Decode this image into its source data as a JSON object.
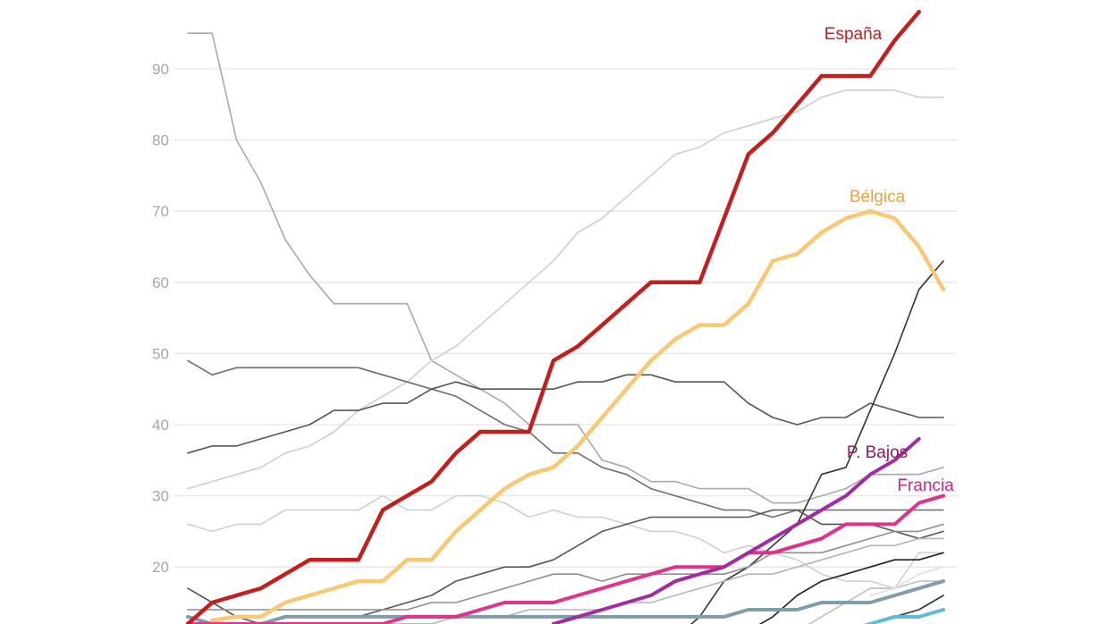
{
  "chart_data": {
    "type": "line",
    "title": "",
    "xlabel": "",
    "ylabel": "",
    "ylim": [
      0,
      100
    ],
    "y_ticks": [
      20,
      30,
      40,
      50,
      60,
      70,
      80,
      90
    ],
    "grid": true,
    "x": [
      1,
      2,
      3,
      4,
      5,
      6,
      7,
      8,
      9,
      10,
      11,
      12,
      13,
      14,
      15,
      16,
      17,
      18,
      19,
      20,
      21,
      22,
      23,
      24,
      25,
      26,
      27,
      28,
      29,
      30,
      31,
      32
    ],
    "series": [
      {
        "name": "gris-1",
        "color": "#a9a9a9",
        "width": "thin",
        "values": [
          95,
          95,
          80,
          74,
          66,
          61,
          57,
          57,
          57,
          57,
          49,
          47,
          45,
          43,
          40,
          40,
          40,
          35,
          34,
          32,
          32,
          31,
          31,
          31,
          29,
          29,
          30,
          31,
          33,
          33,
          33,
          34
        ]
      },
      {
        "name": "gris-2",
        "color": "#cfcfcf",
        "width": "thin",
        "values": [
          31,
          32,
          33,
          34,
          36,
          37,
          39,
          42,
          44,
          46,
          49,
          51,
          54,
          57,
          60,
          63,
          67,
          69,
          72,
          75,
          78,
          79,
          81,
          82,
          83,
          84,
          86,
          87,
          87,
          87,
          86,
          86
        ]
      },
      {
        "name": "gris-3",
        "color": "#6e6e6e",
        "width": "thin",
        "values": [
          49,
          47,
          48,
          48,
          48,
          48,
          48,
          48,
          47,
          46,
          45,
          44,
          42,
          40,
          39,
          36,
          36,
          34,
          33,
          31,
          30,
          29,
          28,
          28,
          27,
          28,
          28,
          28,
          28,
          28,
          28,
          28
        ]
      },
      {
        "name": "gris-4",
        "color": "#555555",
        "width": "thin",
        "values": [
          36,
          37,
          37,
          38,
          39,
          40,
          42,
          42,
          43,
          43,
          45,
          46,
          45,
          45,
          45,
          45,
          46,
          46,
          47,
          47,
          46,
          46,
          46,
          43,
          41,
          40,
          41,
          41,
          43,
          42,
          41,
          41
        ]
      },
      {
        "name": "gris-5",
        "color": "#d0d0d0",
        "width": "thin",
        "values": [
          26,
          25,
          26,
          26,
          28,
          28,
          28,
          28,
          30,
          28,
          28,
          30,
          30,
          29,
          27,
          28,
          27,
          27,
          26,
          25,
          25,
          24,
          22,
          23,
          22,
          21,
          19,
          18,
          18,
          17,
          22,
          22
        ]
      },
      {
        "name": "gris-6",
        "color": "#333333",
        "width": "thin",
        "values": [
          null,
          null,
          null,
          null,
          null,
          null,
          null,
          null,
          null,
          null,
          null,
          null,
          null,
          null,
          null,
          null,
          null,
          null,
          null,
          null,
          10,
          13,
          18,
          20,
          23,
          26,
          33,
          34,
          42,
          50,
          59,
          63
        ]
      },
      {
        "name": "gris-7",
        "color": "#555555",
        "width": "thin",
        "values": [
          17,
          15,
          13,
          12,
          13,
          13,
          13,
          13,
          14,
          15,
          16,
          18,
          19,
          20,
          20,
          21,
          23,
          25,
          26,
          27,
          27,
          27,
          27,
          27,
          28,
          28,
          26,
          26,
          26,
          25,
          24,
          25
        ]
      },
      {
        "name": "gris-8",
        "color": "#8e8e8e",
        "width": "thin",
        "values": [
          14,
          14,
          14,
          14,
          14,
          14,
          14,
          14,
          14,
          14,
          15,
          15,
          16,
          17,
          18,
          19,
          19,
          18,
          19,
          19,
          19,
          19,
          19,
          20,
          22,
          22,
          22,
          23,
          24,
          25,
          25,
          26
        ]
      },
      {
        "name": "gris-9",
        "color": "#b5b5b5",
        "width": "thin",
        "values": [
          12,
          12,
          12,
          12,
          12,
          12,
          12,
          12,
          12,
          12,
          12,
          13,
          13,
          13,
          14,
          14,
          14,
          14,
          15,
          15,
          16,
          17,
          18,
          19,
          19,
          20,
          21,
          22,
          23,
          23,
          24,
          24
        ]
      },
      {
        "name": "gris-10",
        "color": "#222222",
        "width": "thin",
        "values": [
          null,
          null,
          null,
          null,
          null,
          null,
          null,
          null,
          null,
          null,
          null,
          null,
          null,
          null,
          null,
          null,
          null,
          null,
          null,
          null,
          null,
          null,
          10,
          11,
          13,
          16,
          18,
          19,
          20,
          21,
          21,
          22
        ]
      },
      {
        "name": "gris-11",
        "color": "#c0c0c0",
        "width": "thin",
        "values": [
          null,
          null,
          null,
          null,
          null,
          null,
          null,
          null,
          null,
          null,
          null,
          null,
          null,
          null,
          null,
          null,
          null,
          null,
          null,
          null,
          null,
          null,
          null,
          null,
          null,
          11,
          13,
          15,
          17,
          17,
          18,
          18
        ]
      },
      {
        "name": "gris-12",
        "color": "#e0e0e0",
        "width": "thin",
        "values": [
          null,
          null,
          null,
          null,
          null,
          null,
          null,
          null,
          null,
          null,
          null,
          null,
          null,
          null,
          null,
          null,
          null,
          null,
          null,
          null,
          null,
          null,
          null,
          null,
          null,
          null,
          null,
          null,
          16,
          17,
          19,
          20
        ]
      },
      {
        "name": "gris-13",
        "color": "#333333",
        "width": "thin",
        "values": [
          null,
          null,
          null,
          null,
          null,
          null,
          null,
          null,
          null,
          null,
          null,
          null,
          null,
          null,
          null,
          null,
          null,
          null,
          null,
          null,
          null,
          null,
          null,
          null,
          null,
          null,
          null,
          null,
          12,
          13,
          14,
          16
        ]
      },
      {
        "name": "azul-gris",
        "color": "#7f9ea9",
        "width": "medium",
        "values": [
          13,
          12,
          12,
          12,
          13,
          13,
          13,
          13,
          13,
          13,
          13,
          13,
          13,
          13,
          13,
          13,
          13,
          13,
          13,
          13,
          13,
          13,
          13,
          14,
          14,
          14,
          15,
          15,
          15,
          16,
          17,
          18
        ]
      },
      {
        "name": "azul",
        "color": "#5bbcd8",
        "width": "medium",
        "values": [
          null,
          null,
          null,
          null,
          null,
          null,
          null,
          null,
          null,
          null,
          null,
          null,
          null,
          null,
          null,
          null,
          null,
          null,
          null,
          null,
          null,
          null,
          null,
          null,
          null,
          null,
          11,
          11,
          12,
          13,
          13,
          14
        ]
      },
      {
        "name": "Francia",
        "color": "#e0348a",
        "width": "medium",
        "label": "Francia",
        "label_color": "#cc2a7f",
        "values": [
          12,
          12,
          12,
          12,
          12,
          12,
          12,
          12,
          12,
          13,
          13,
          13,
          14,
          15,
          15,
          15,
          16,
          17,
          18,
          19,
          20,
          20,
          20,
          22,
          22,
          23,
          24,
          26,
          26,
          26,
          29,
          30
        ]
      },
      {
        "name": "P. Bajos",
        "color": "#a42aa0",
        "width": "medium",
        "label": "P. Bajos",
        "label_color": "#8e1a5a",
        "values": [
          null,
          null,
          null,
          null,
          null,
          null,
          null,
          null,
          null,
          null,
          null,
          null,
          null,
          null,
          null,
          12,
          13,
          14,
          15,
          16,
          18,
          19,
          20,
          22,
          24,
          26,
          28,
          30,
          33,
          35,
          38,
          null
        ]
      },
      {
        "name": "Bélgica",
        "color": "#f8c875",
        "width": "thick",
        "label": "Bélgica",
        "label_color": "#eea23d",
        "values": [
          null,
          12.5,
          13,
          13,
          15,
          16,
          17,
          18,
          18,
          21,
          21,
          25,
          28,
          31,
          33,
          34,
          37,
          41,
          45,
          49,
          52,
          54,
          54,
          57,
          63,
          64,
          67,
          69,
          70,
          69,
          65,
          59
        ]
      },
      {
        "name": "España",
        "color": "#c2201f",
        "width": "thick",
        "label": "España",
        "label_color": "#b52427",
        "values": [
          12,
          15,
          16,
          17,
          19,
          21,
          21,
          21,
          28,
          30,
          32,
          36,
          39,
          39,
          39,
          49,
          51,
          54,
          57,
          60,
          60,
          60,
          69,
          78,
          81,
          85,
          89,
          89,
          89,
          94,
          98,
          null
        ]
      }
    ]
  }
}
